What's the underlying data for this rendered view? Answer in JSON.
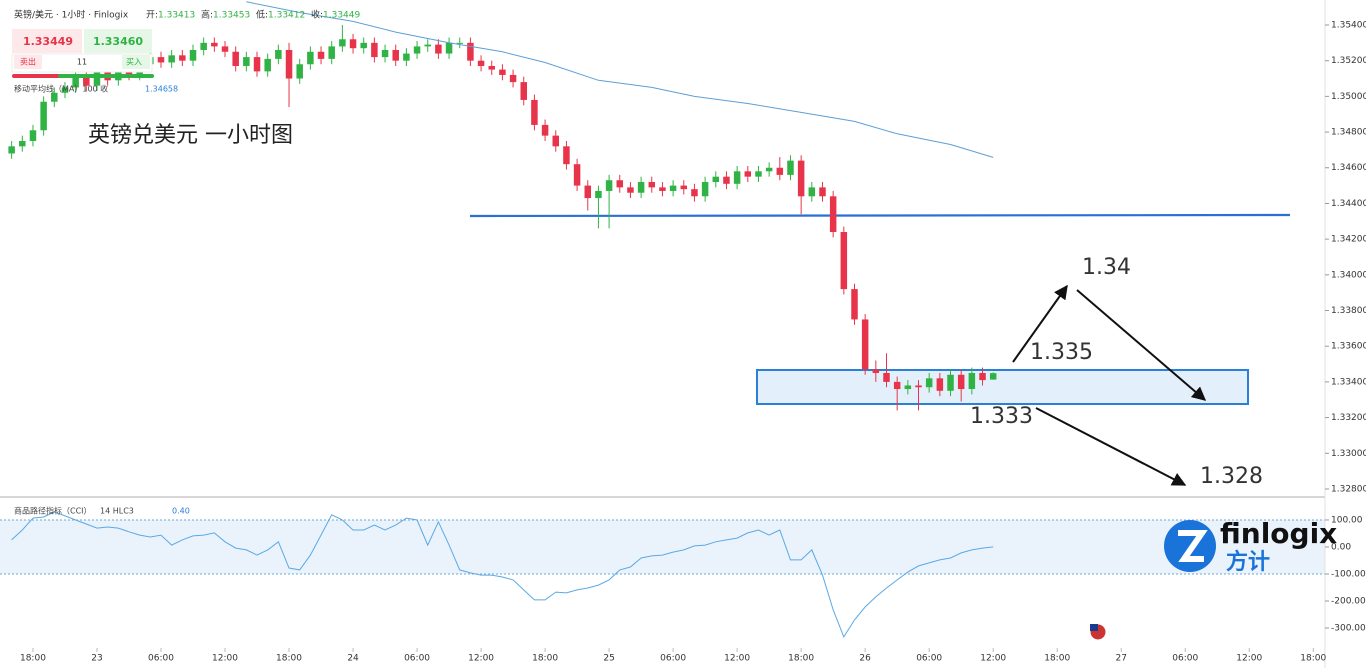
{
  "header": {
    "symbol": "英镑/美元 · 1小时 · Finlogix",
    "open_label": "开:",
    "high_label": "高:",
    "low_label": "低:",
    "close_label": "收:"
  },
  "trade": {
    "sell_price": "1.33449",
    "buy_price": "1.33460",
    "spread": "11",
    "sell": "卖出",
    "buy": "买入"
  },
  "brand": {
    "name": "finlogix",
    "chinese": "方计"
  },
  "chart_data": [
    {
      "type": "candlestick",
      "title": "英镑兑美元 一小时图",
      "up_color": "#2fb344",
      "down_color": "#e8344a",
      "xlim": [
        -1.09,
        123.1
      ],
      "xticks": [
        {
          "value": 2,
          "label": "18:00"
        },
        {
          "value": 8,
          "label": "23"
        },
        {
          "value": 14,
          "label": "06:00"
        },
        {
          "value": 20,
          "label": "12:00"
        },
        {
          "value": 26,
          "label": "18:00"
        },
        {
          "value": 32,
          "label": "24"
        },
        {
          "value": 38,
          "label": "06:00"
        },
        {
          "value": 44,
          "label": "12:00"
        },
        {
          "value": 50,
          "label": "18:00"
        },
        {
          "value": 56,
          "label": "25"
        },
        {
          "value": 62,
          "label": "06:00"
        },
        {
          "value": 68,
          "label": "12:00"
        },
        {
          "value": 74,
          "label": "18:00"
        },
        {
          "value": 80,
          "label": "26"
        },
        {
          "value": 86,
          "label": "06:00"
        },
        {
          "value": 92,
          "label": "12:00"
        },
        {
          "value": 98,
          "label": "18:00"
        },
        {
          "value": 104,
          "label": "27"
        },
        {
          "value": 110,
          "label": "06:00"
        },
        {
          "value": 116,
          "label": "12:00"
        },
        {
          "value": 122,
          "label": "18:00"
        }
      ],
      "ylim": [
        1.32755,
        1.3554
      ],
      "yticks": [
        {
          "value": 1.328,
          "label": "1.32800"
        },
        {
          "value": 1.33,
          "label": "1.33000"
        },
        {
          "value": 1.332,
          "label": "1.33200"
        },
        {
          "value": 1.334,
          "label": "1.33400"
        },
        {
          "value": 1.336,
          "label": "1.33600"
        },
        {
          "value": 1.338,
          "label": "1.33800"
        },
        {
          "value": 1.34,
          "label": "1.34000"
        },
        {
          "value": 1.342,
          "label": "1.34200"
        },
        {
          "value": 1.344,
          "label": "1.34400"
        },
        {
          "value": 1.346,
          "label": "1.34600"
        },
        {
          "value": 1.348,
          "label": "1.34800"
        },
        {
          "value": 1.35,
          "label": "1.35000"
        },
        {
          "value": 1.352,
          "label": "1.35200"
        },
        {
          "value": 1.354,
          "label": "1.35400"
        }
      ],
      "open": [
        1.3468,
        1.3472,
        1.3475,
        1.3481,
        1.3497,
        1.3502,
        1.3505,
        1.3512,
        1.3506,
        1.3514,
        1.3509,
        1.3517,
        1.3512,
        1.3518,
        1.3522,
        1.3519,
        1.3523,
        1.352,
        1.3526,
        1.353,
        1.3528,
        1.3525,
        1.3517,
        1.3522,
        1.3514,
        1.3521,
        1.3526,
        1.351,
        1.3518,
        1.3525,
        1.3521,
        1.3528,
        1.3532,
        1.3527,
        1.353,
        1.3522,
        1.3526,
        1.352,
        1.3524,
        1.3528,
        1.3529,
        1.3524,
        1.353,
        1.353,
        1.352,
        1.3517,
        1.3515,
        1.3512,
        1.3508,
        1.3498,
        1.3484,
        1.3478,
        1.3472,
        1.3462,
        1.345,
        1.3443,
        1.3447,
        1.3453,
        1.3449,
        1.3446,
        1.3452,
        1.3449,
        1.3447,
        1.345,
        1.3448,
        1.3444,
        1.3452,
        1.3455,
        1.3451,
        1.3458,
        1.3455,
        1.3458,
        1.346,
        1.3456,
        1.3464,
        1.3444,
        1.3449,
        1.3444,
        1.3424,
        1.3392,
        1.3375,
        1.3347,
        1.3345,
        1.334,
        1.3336,
        1.3338,
        1.3337,
        1.3342,
        1.3335,
        1.3344,
        1.3336,
        1.3345,
        1.33413
      ],
      "high": [
        1.3475,
        1.3478,
        1.3484,
        1.35,
        1.3505,
        1.3508,
        1.3515,
        1.3515,
        1.3517,
        1.3517,
        1.352,
        1.352,
        1.3521,
        1.3525,
        1.3525,
        1.3526,
        1.3526,
        1.3529,
        1.3533,
        1.3533,
        1.3531,
        1.3528,
        1.3525,
        1.3525,
        1.3524,
        1.3529,
        1.353,
        1.3521,
        1.3528,
        1.3528,
        1.3531,
        1.354,
        1.3535,
        1.3533,
        1.3533,
        1.3529,
        1.3529,
        1.3527,
        1.3531,
        1.3532,
        1.3532,
        1.3533,
        1.3533,
        1.3533,
        1.3523,
        1.352,
        1.3518,
        1.3515,
        1.3511,
        1.3501,
        1.3487,
        1.3481,
        1.3475,
        1.3465,
        1.3453,
        1.345,
        1.3456,
        1.3456,
        1.3452,
        1.3455,
        1.3455,
        1.3452,
        1.3453,
        1.3453,
        1.3451,
        1.3455,
        1.3458,
        1.3458,
        1.3461,
        1.3461,
        1.3461,
        1.3463,
        1.3466,
        1.3467,
        1.3467,
        1.3452,
        1.3452,
        1.3447,
        1.3427,
        1.3395,
        1.3378,
        1.3352,
        1.3356,
        1.3343,
        1.3341,
        1.3341,
        1.3345,
        1.3345,
        1.3347,
        1.3347,
        1.3348,
        1.3348,
        1.33453
      ],
      "low": [
        1.3465,
        1.3469,
        1.3472,
        1.3478,
        1.3494,
        1.3499,
        1.3502,
        1.3503,
        1.3503,
        1.3506,
        1.3506,
        1.3509,
        1.3509,
        1.3515,
        1.3516,
        1.3516,
        1.3517,
        1.3517,
        1.3523,
        1.3525,
        1.3522,
        1.3514,
        1.3514,
        1.3511,
        1.3511,
        1.3518,
        1.3494,
        1.3507,
        1.3515,
        1.3518,
        1.3518,
        1.3525,
        1.3524,
        1.3524,
        1.3519,
        1.3519,
        1.3517,
        1.3517,
        1.3521,
        1.3525,
        1.3521,
        1.3521,
        1.3527,
        1.3517,
        1.3514,
        1.3512,
        1.3509,
        1.3505,
        1.3495,
        1.3481,
        1.3475,
        1.3469,
        1.3459,
        1.3447,
        1.3436,
        1.3426,
        1.3426,
        1.3446,
        1.3443,
        1.3443,
        1.3446,
        1.3444,
        1.3444,
        1.3445,
        1.3441,
        1.3441,
        1.3449,
        1.3448,
        1.3448,
        1.3452,
        1.3452,
        1.3455,
        1.3453,
        1.3453,
        1.3434,
        1.3441,
        1.3441,
        1.3421,
        1.3389,
        1.3372,
        1.3344,
        1.334,
        1.3337,
        1.3324,
        1.3333,
        1.3324,
        1.3334,
        1.3332,
        1.3332,
        1.3329,
        1.3333,
        1.3338,
        1.33412
      ],
      "close": [
        1.3472,
        1.3475,
        1.3481,
        1.3497,
        1.3502,
        1.3505,
        1.3512,
        1.3506,
        1.3514,
        1.3509,
        1.3517,
        1.3512,
        1.3518,
        1.3522,
        1.3519,
        1.3523,
        1.352,
        1.3526,
        1.353,
        1.3528,
        1.3525,
        1.3517,
        1.3522,
        1.3514,
        1.3521,
        1.3526,
        1.351,
        1.3518,
        1.3525,
        1.3521,
        1.3528,
        1.3532,
        1.3527,
        1.353,
        1.3522,
        1.3526,
        1.352,
        1.3524,
        1.3528,
        1.3529,
        1.3524,
        1.353,
        1.353,
        1.352,
        1.3517,
        1.3515,
        1.3512,
        1.3508,
        1.3498,
        1.3484,
        1.3478,
        1.3472,
        1.3462,
        1.345,
        1.3443,
        1.3447,
        1.3453,
        1.3449,
        1.3446,
        1.3452,
        1.3449,
        1.3447,
        1.345,
        1.3448,
        1.3444,
        1.3452,
        1.3455,
        1.3451,
        1.3458,
        1.3455,
        1.3458,
        1.346,
        1.3456,
        1.3464,
        1.3444,
        1.3449,
        1.3444,
        1.3424,
        1.3392,
        1.3375,
        1.3347,
        1.3345,
        1.334,
        1.3336,
        1.3338,
        1.3337,
        1.3342,
        1.3335,
        1.3344,
        1.3336,
        1.3345,
        1.3341,
        1.33449
      ],
      "ma": {
        "name": "移动平均线（MA）100 收",
        "color": "#5b9fd8",
        "x": [
          22,
          27,
          32,
          36,
          41,
          46,
          50,
          55,
          60,
          64,
          69,
          74,
          79,
          83,
          88,
          92
        ],
        "values": [
          1.3553,
          1.3547,
          1.3542,
          1.3536,
          1.353,
          1.3525,
          1.3519,
          1.3509,
          1.3505,
          1.35,
          1.3496,
          1.3491,
          1.3486,
          1.3479,
          1.3473,
          1.34658
        ]
      },
      "annotations": [
        1.34,
        1.335,
        1.333,
        1.328
      ]
    },
    {
      "type": "line",
      "name": "商品路径指标（CCI）",
      "params": "14 HLC3",
      "readout": "0.40",
      "color": "#5aa9e6",
      "band": [
        -100,
        100
      ],
      "xlim": [
        -1.09,
        123.1
      ],
      "ylim": [
        -374,
        185
      ],
      "yticks": [
        {
          "value": 100,
          "label": "100.00"
        },
        {
          "value": 0,
          "label": "0.00"
        },
        {
          "value": -100,
          "label": "-100.00"
        },
        {
          "value": -200,
          "label": "-200.00"
        },
        {
          "value": -300,
          "label": "-300.00"
        }
      ],
      "values": [
        26,
        63,
        107,
        111,
        130,
        115,
        100,
        85,
        70,
        74,
        70,
        56,
        44,
        37,
        44,
        7,
        26,
        41,
        44,
        52,
        19,
        -4,
        -11,
        -30,
        -11,
        19,
        -78,
        -85,
        -30,
        44,
        119,
        100,
        63,
        63,
        81,
        63,
        81,
        107,
        100,
        7,
        93,
        7,
        -85,
        -96,
        -104,
        -104,
        -111,
        -122,
        -159,
        -196,
        -196,
        -167,
        -170,
        -159,
        -152,
        -141,
        -122,
        -85,
        -74,
        -41,
        -33,
        -30,
        -19,
        -11,
        4,
        7,
        19,
        26,
        33,
        52,
        63,
        44,
        63,
        -48,
        -48,
        -11,
        -104,
        -233,
        -333,
        -270,
        -222,
        -185,
        -152,
        -122,
        -93,
        -70,
        -59,
        -48,
        -41,
        -22,
        -11,
        -4,
        0.4
      ]
    }
  ]
}
